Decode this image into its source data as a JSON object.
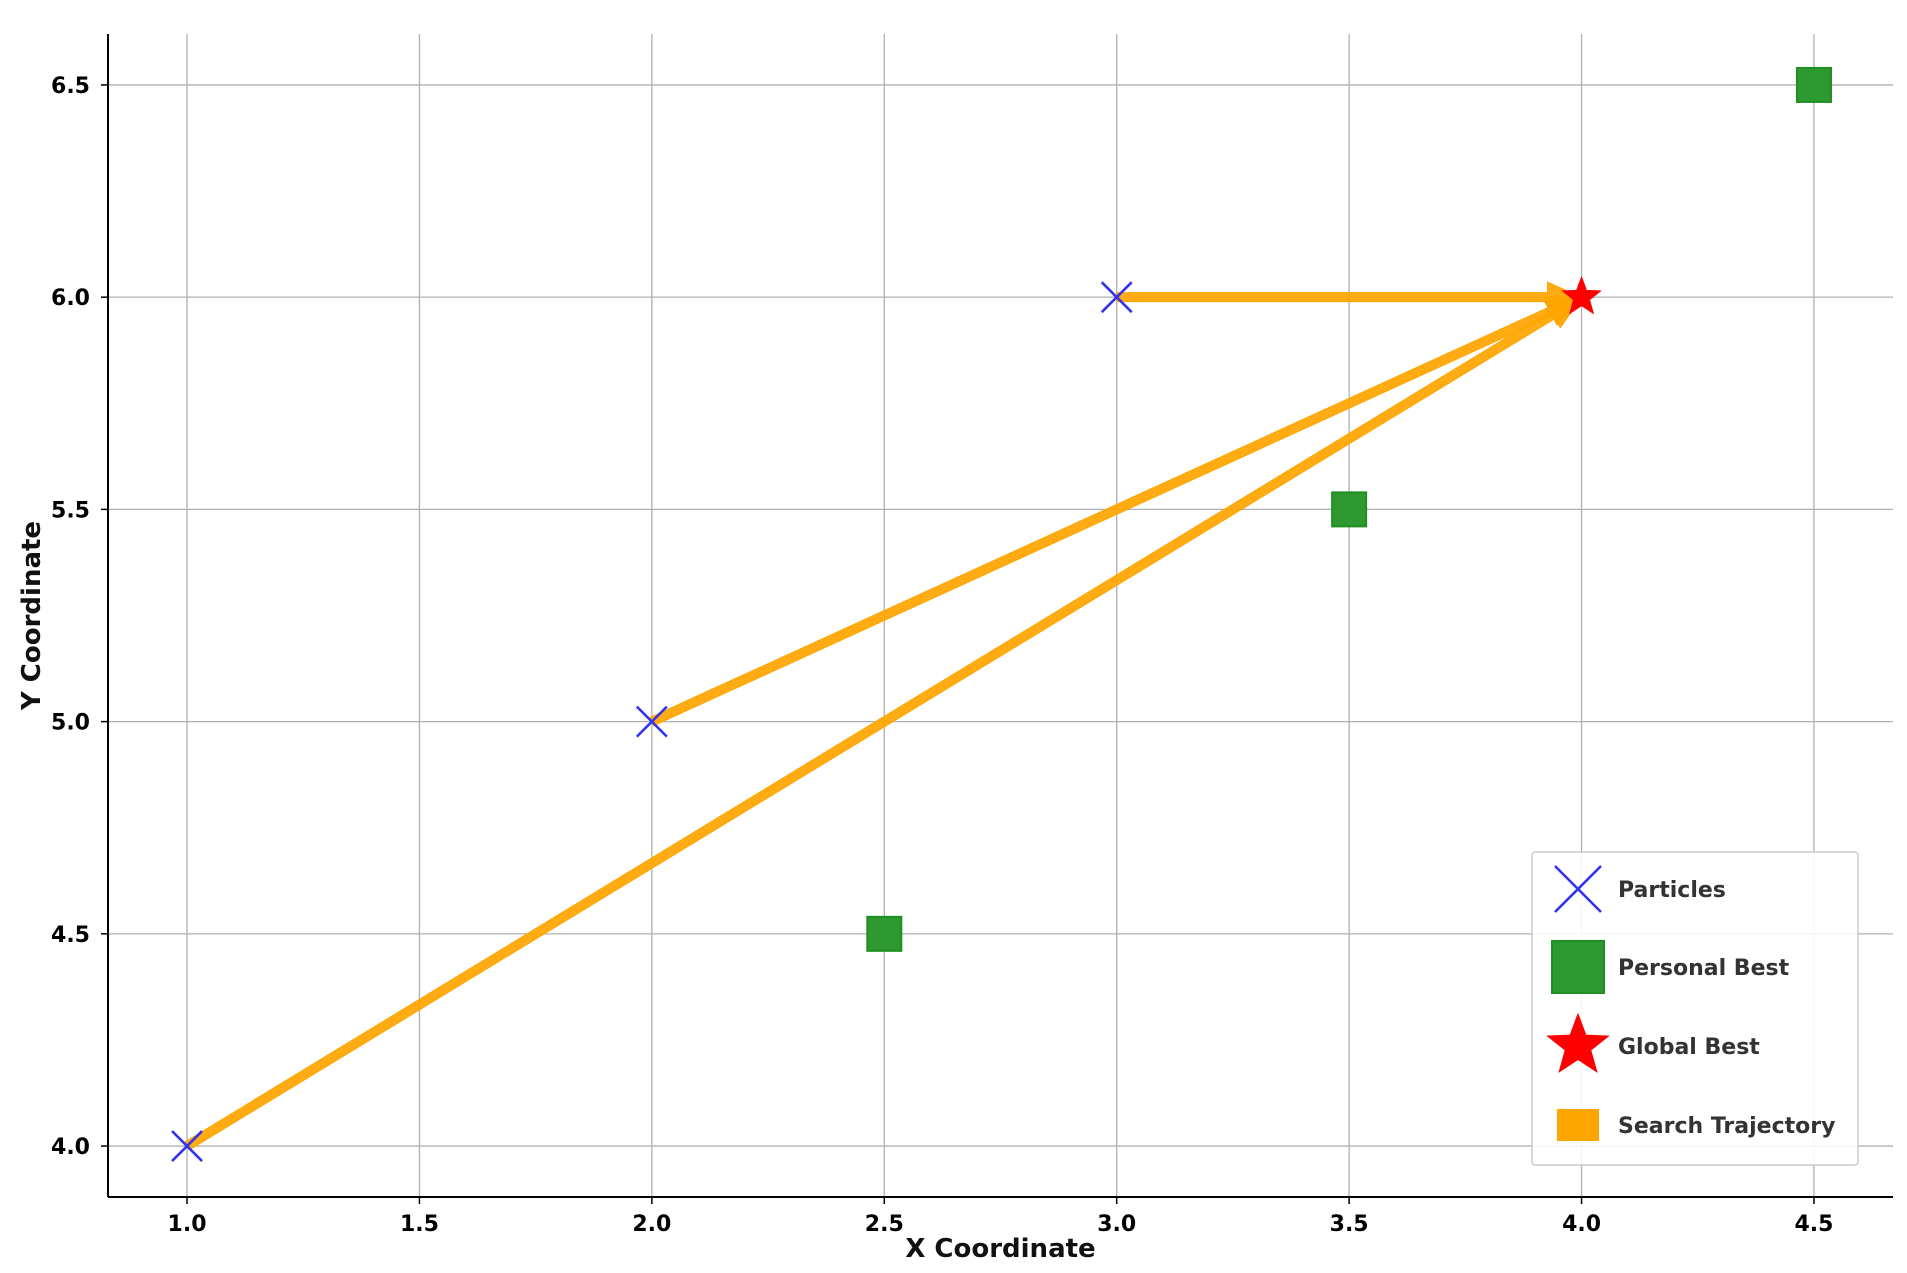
{
  "chart_data": {
    "type": "scatter",
    "xlabel": "X Coordinate",
    "ylabel": "Y Coordinate",
    "xlim": [
      0.83,
      4.67
    ],
    "ylim": [
      3.88,
      6.62
    ],
    "grid": true,
    "legend_position": "lower-right",
    "x_ticks": [
      "1.0",
      "1.5",
      "2.0",
      "2.5",
      "3.0",
      "3.5",
      "4.0",
      "4.5"
    ],
    "y_ticks": [
      "4.0",
      "4.5",
      "5.0",
      "5.5",
      "6.0",
      "6.5"
    ],
    "series": [
      {
        "name": "Particles",
        "marker": "x",
        "color": "#3333ee",
        "points": [
          {
            "x": 1.0,
            "y": 4.0
          },
          {
            "x": 2.0,
            "y": 5.0
          },
          {
            "x": 3.0,
            "y": 6.0
          }
        ]
      },
      {
        "name": "Personal Best",
        "marker": "square",
        "color": "#2e9930",
        "points": [
          {
            "x": 2.5,
            "y": 4.5
          },
          {
            "x": 3.5,
            "y": 5.5
          },
          {
            "x": 4.5,
            "y": 6.5
          }
        ]
      },
      {
        "name": "Global Best",
        "marker": "star",
        "color": "#ff0000",
        "points": [
          {
            "x": 4.0,
            "y": 6.0
          }
        ]
      },
      {
        "name": "Search Trajectory",
        "marker": "arrow",
        "color": "#ffa500",
        "arrows": [
          {
            "x0": 1.0,
            "y0": 4.0,
            "x1": 4.0,
            "y1": 6.0
          },
          {
            "x0": 2.0,
            "y0": 5.0,
            "x1": 4.0,
            "y1": 6.0
          },
          {
            "x0": 3.0,
            "y0": 6.0,
            "x1": 4.0,
            "y1": 6.0
          }
        ]
      }
    ]
  }
}
